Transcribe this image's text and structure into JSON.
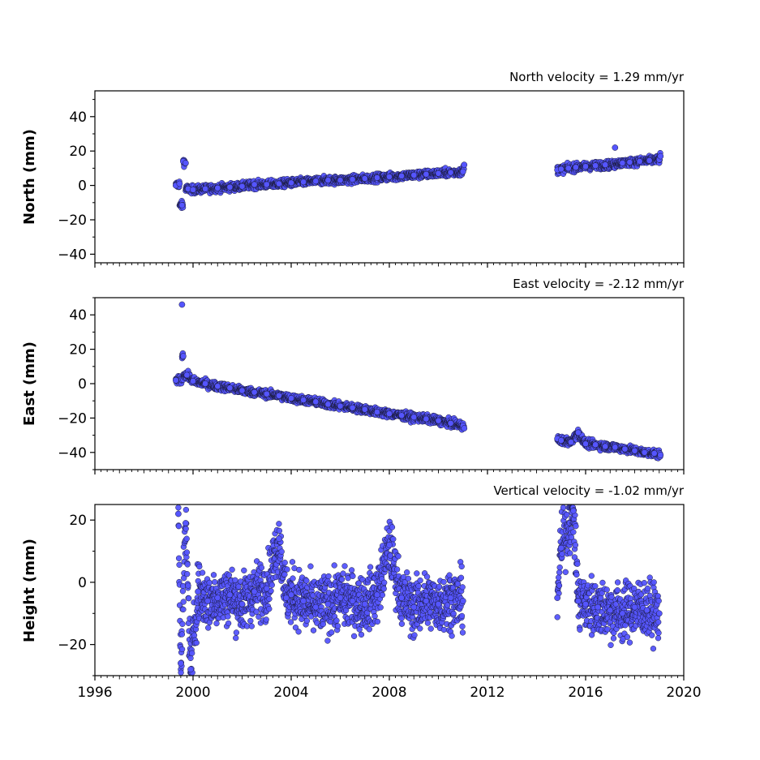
{
  "chart_data": [
    {
      "type": "scatter",
      "title": "North velocity = 1.29 mm/yr",
      "xlabel": "",
      "ylabel": "North (mm)",
      "xlim": [
        1996,
        2020
      ],
      "ylim": [
        -45,
        55
      ],
      "yticks": [
        -40,
        -20,
        0,
        20,
        40
      ],
      "ytick_labels": [
        "−40",
        "−20",
        "0",
        "20",
        "40"
      ],
      "xticks": [
        1996,
        2000,
        2004,
        2008,
        2012,
        2016,
        2020
      ],
      "xtick_labels": [],
      "marker_color": "#5555ff",
      "marker_edge_color": "#1a1a3a",
      "grid": false,
      "series": [
        {
          "x": [
            1999.3,
            1999.45,
            1999.55,
            1999.6,
            1999.7,
            1999.8,
            2000.0,
            2000.5,
            2001.0,
            2001.5,
            2002.0,
            2002.5,
            2003.0,
            2003.5,
            2004.0,
            2004.5,
            2005.0,
            2005.5,
            2006.0,
            2006.5,
            2007.0,
            2007.5,
            2008.0,
            2008.5,
            2009.0,
            2009.5,
            2010.0,
            2010.5,
            2011.0,
            2011.05
          ],
          "y": [
            0.0,
            1.0,
            -11.5,
            14.0,
            13.0,
            -2.0,
            -2.5,
            -2.0,
            -1.5,
            -1.0,
            -0.5,
            0.5,
            0.5,
            1.0,
            1.5,
            2.0,
            2.5,
            3.0,
            3.0,
            3.5,
            4.0,
            4.5,
            5.0,
            5.5,
            6.0,
            6.5,
            7.0,
            7.5,
            8.0,
            12.0
          ]
        },
        {
          "x": [
            2014.85,
            2015.0,
            2015.3,
            2015.6,
            2016.0,
            2016.4,
            2016.8,
            2017.2,
            2017.5,
            2017.8,
            2018.2,
            2018.6,
            2019.0,
            2019.05
          ],
          "y": [
            9.0,
            9.5,
            10.0,
            10.5,
            11.0,
            11.5,
            12.0,
            22.0,
            13.0,
            13.5,
            14.0,
            14.5,
            15.0,
            17.0
          ]
        }
      ]
    },
    {
      "type": "scatter",
      "title": "East velocity = -2.12 mm/yr",
      "xlabel": "",
      "ylabel": "East (mm)",
      "xlim": [
        1996,
        2020
      ],
      "ylim": [
        -50,
        50
      ],
      "yticks": [
        -40,
        -20,
        0,
        20,
        40
      ],
      "ytick_labels": [
        "−40",
        "−20",
        "0",
        "20",
        "40"
      ],
      "xticks": [
        1996,
        2000,
        2004,
        2008,
        2012,
        2016,
        2020
      ],
      "xtick_labels": [],
      "marker_color": "#5555ff",
      "marker_edge_color": "#1a1a3a",
      "grid": false,
      "series": [
        {
          "x": [
            1999.3,
            1999.55,
            1999.6,
            1999.75,
            2000.0,
            2000.5,
            2001.0,
            2001.5,
            2002.0,
            2002.5,
            2003.0,
            2003.5,
            2004.0,
            2004.5,
            2005.0,
            2005.5,
            2006.0,
            2006.5,
            2007.0,
            2007.5,
            2008.0,
            2008.5,
            2009.0,
            2009.5,
            2010.0,
            2010.5,
            2011.0,
            2011.05
          ],
          "y": [
            2.0,
            46.0,
            16.0,
            5.0,
            1.5,
            0.0,
            -1.5,
            -2.5,
            -4.0,
            -5.0,
            -6.0,
            -7.0,
            -8.5,
            -9.5,
            -10.5,
            -12.0,
            -13.0,
            -14.0,
            -15.0,
            -16.5,
            -17.5,
            -18.5,
            -19.5,
            -20.5,
            -21.5,
            -23.0,
            -24.5,
            -26.0
          ]
        },
        {
          "x": [
            2014.85,
            2015.0,
            2015.4,
            2015.7,
            2016.0,
            2016.4,
            2016.8,
            2017.2,
            2017.6,
            2018.0,
            2018.4,
            2018.8,
            2019.05
          ],
          "y": [
            -32.0,
            -33.0,
            -34.0,
            -28.5,
            -35.0,
            -35.5,
            -36.5,
            -37.0,
            -38.0,
            -39.0,
            -40.0,
            -40.5,
            -41.5
          ]
        }
      ]
    },
    {
      "type": "scatter",
      "title": "Vertical velocity = -1.02 mm/yr",
      "xlabel": "",
      "ylabel": "Height (mm)",
      "xlim": [
        1996,
        2020
      ],
      "ylim": [
        -30,
        25
      ],
      "yticks": [
        -20,
        0,
        20
      ],
      "ytick_labels": [
        "−20",
        "0",
        "20"
      ],
      "xticks": [
        1996,
        2000,
        2004,
        2008,
        2012,
        2016,
        2020
      ],
      "xtick_labels": [
        "1996",
        "2000",
        "2004",
        "2008",
        "2012",
        "2016",
        "2020"
      ],
      "marker_color": "#5555ff",
      "marker_edge_color": "#1a1a3a",
      "grid": false,
      "series": [
        {
          "x": [
            1999.4,
            1999.5,
            1999.7,
            1999.9,
            2000.2,
            2000.6,
            2001.0,
            2001.5,
            2002.0,
            2002.5,
            2003.0,
            2003.5,
            2003.8,
            2004.0,
            2004.5,
            2005.0,
            2005.5,
            2006.0,
            2006.5,
            2007.0,
            2007.5,
            2008.0,
            2008.5,
            2009.0,
            2009.5,
            2010.0,
            2010.5,
            2011.0
          ],
          "y": [
            22.0,
            -26.0,
            19.0,
            -28.0,
            -3.0,
            -6.0,
            -5.0,
            -4.0,
            -7.0,
            -3.0,
            -2.0,
            14.0,
            -5.0,
            -4.0,
            -6.0,
            -8.0,
            -7.0,
            -5.0,
            -6.0,
            -7.0,
            -4.0,
            12.0,
            -5.0,
            -8.0,
            -6.0,
            -7.0,
            -5.0,
            -6.0
          ]
        },
        {
          "x": [
            2014.85,
            2015.0,
            2015.5,
            2015.7,
            2016.0,
            2016.5,
            2017.0,
            2017.5,
            2018.0,
            2018.5,
            2019.0
          ],
          "y": [
            -5.0,
            11.0,
            23.0,
            -6.0,
            -7.0,
            -8.0,
            -9.0,
            -10.0,
            -8.0,
            -9.0,
            -10.0
          ]
        }
      ]
    }
  ]
}
